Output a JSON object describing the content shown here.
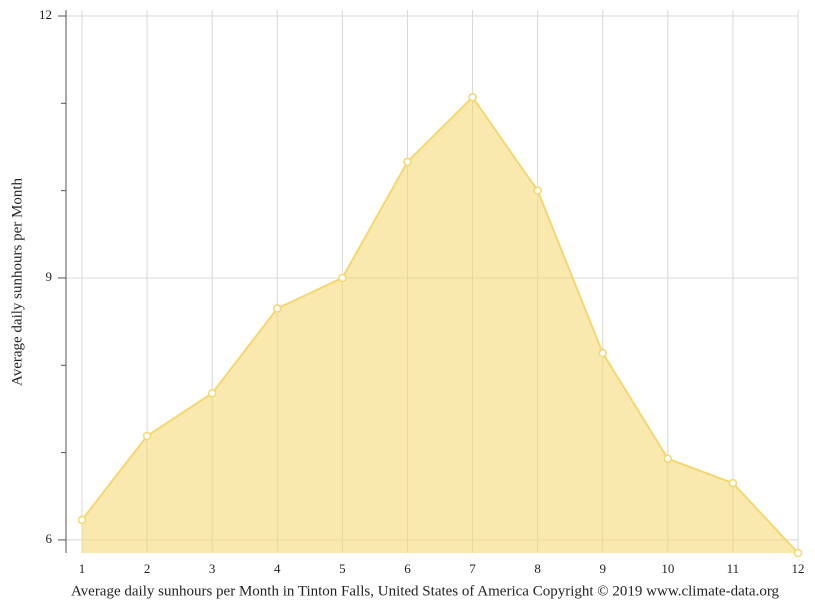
{
  "chart_data": {
    "type": "area",
    "title": "Average daily sunhours per Month in Tinton Falls, United States of America Copyright © 2019 www.climate-data.org",
    "y_label": "Average daily sunhours per Month",
    "x": [
      1,
      2,
      3,
      4,
      5,
      6,
      7,
      8,
      9,
      10,
      11,
      12
    ],
    "series": [
      {
        "name": "Average daily sunhours",
        "color": "#f5d76e",
        "values": [
          6.23,
          7.19,
          7.68,
          8.65,
          9.0,
          10.33,
          11.07,
          10.0,
          8.14,
          6.93,
          6.65,
          5.85
        ]
      }
    ],
    "xlim": [
      1,
      12
    ],
    "xticks": [
      1,
      2,
      3,
      4,
      5,
      6,
      7,
      8,
      9,
      10,
      11,
      12
    ],
    "ylim": [
      5.85,
      12
    ],
    "yticks": [
      6,
      9,
      12
    ],
    "yminorticks": [
      7,
      8,
      10,
      11
    ],
    "grid": true
  }
}
